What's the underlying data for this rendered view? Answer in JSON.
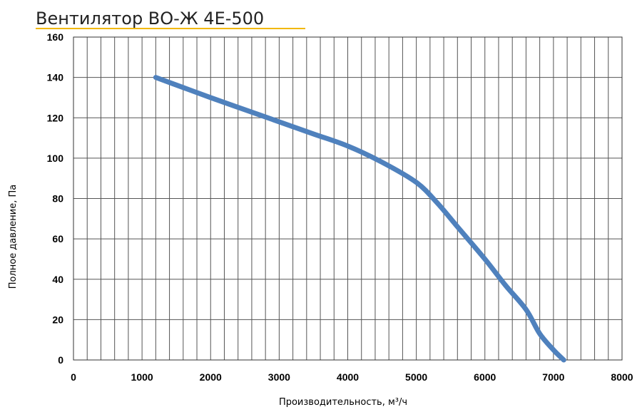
{
  "chart_data": {
    "type": "line",
    "title": "Вентилятор ВО-Ж 4Е-500",
    "xlabel": "Производительность, м³/ч",
    "ylabel": "Полное давление, Па",
    "xlim": [
      0,
      8000
    ],
    "ylim": [
      0,
      160
    ],
    "x_ticks": [
      0,
      1000,
      2000,
      3000,
      4000,
      5000,
      6000,
      7000,
      8000
    ],
    "y_ticks": [
      0,
      20,
      40,
      60,
      80,
      100,
      120,
      140,
      160
    ],
    "x_minor_step": 200,
    "grid": true,
    "legend": "none",
    "series": [
      {
        "color": "#4f81bd",
        "x": [
          1200,
          1600,
          2000,
          2500,
          3000,
          3500,
          4000,
          4500,
          5000,
          5300,
          5600,
          6000,
          6300,
          6600,
          6800,
          7000,
          7150
        ],
        "y": [
          140,
          135,
          130,
          124,
          118,
          112,
          106,
          98,
          88,
          78,
          66,
          50,
          37,
          25,
          13,
          5,
          0
        ]
      }
    ],
    "colors": {
      "title_underline": "#f2b800",
      "grid": "#555555",
      "line": "#4f81bd"
    }
  }
}
